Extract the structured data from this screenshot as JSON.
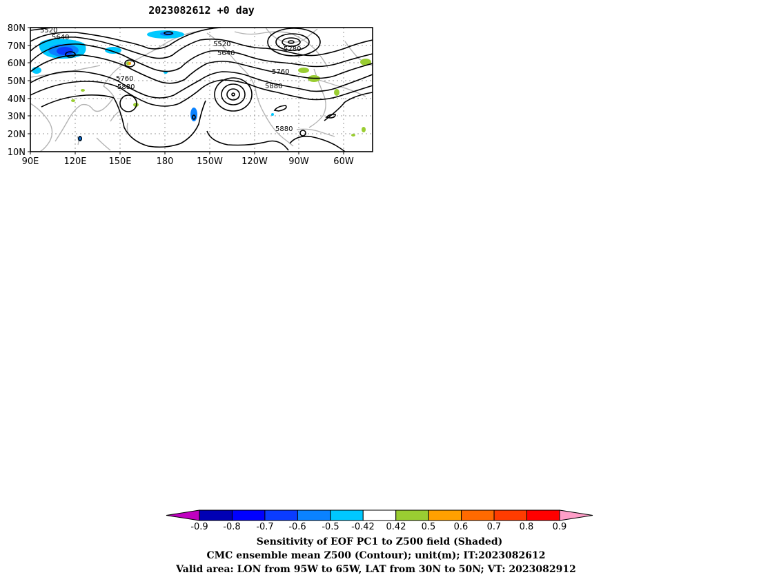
{
  "title": "2023082612 +0 day",
  "map": {
    "lat_labels": [
      "80N",
      "70N",
      "60N",
      "50N",
      "40N",
      "30N",
      "20N",
      "10N"
    ],
    "lon_labels": [
      "90E",
      "120E",
      "150E",
      "180",
      "150W",
      "120W",
      "90W",
      "60W"
    ],
    "contour_labels": [
      "5520",
      "5640",
      "5520",
      "5640",
      "5280",
      "5760",
      "5880",
      "5760",
      "5880",
      "5880"
    ],
    "contour_color": "#000000",
    "coastline_color": "#b4b4b4"
  },
  "colorbar": {
    "tick_labels": [
      "-0.9",
      "-0.8",
      "-0.7",
      "-0.6",
      "-0.5",
      "-0.42",
      "0.42",
      "0.5",
      "0.6",
      "0.7",
      "0.8",
      "0.9"
    ],
    "colors": [
      "#c000c0",
      "#0000b4",
      "#0000ff",
      "#0a3cff",
      "#0a82ff",
      "#00c8ff",
      "#ffffff",
      "#9acd32",
      "#ffa000",
      "#ff6a00",
      "#ff3c00",
      "#ff0000",
      "#ff9ec8"
    ]
  },
  "caption": {
    "line1": "Sensitivity of EOF PC1 to Z500 field (Shaded)",
    "line2": "CMC ensemble mean Z500 (Contour); unit(m); IT:2023082612",
    "line3": "Valid area: LON from 95W to 65W, LAT from 30N to 50N; VT: 2023082912"
  }
}
